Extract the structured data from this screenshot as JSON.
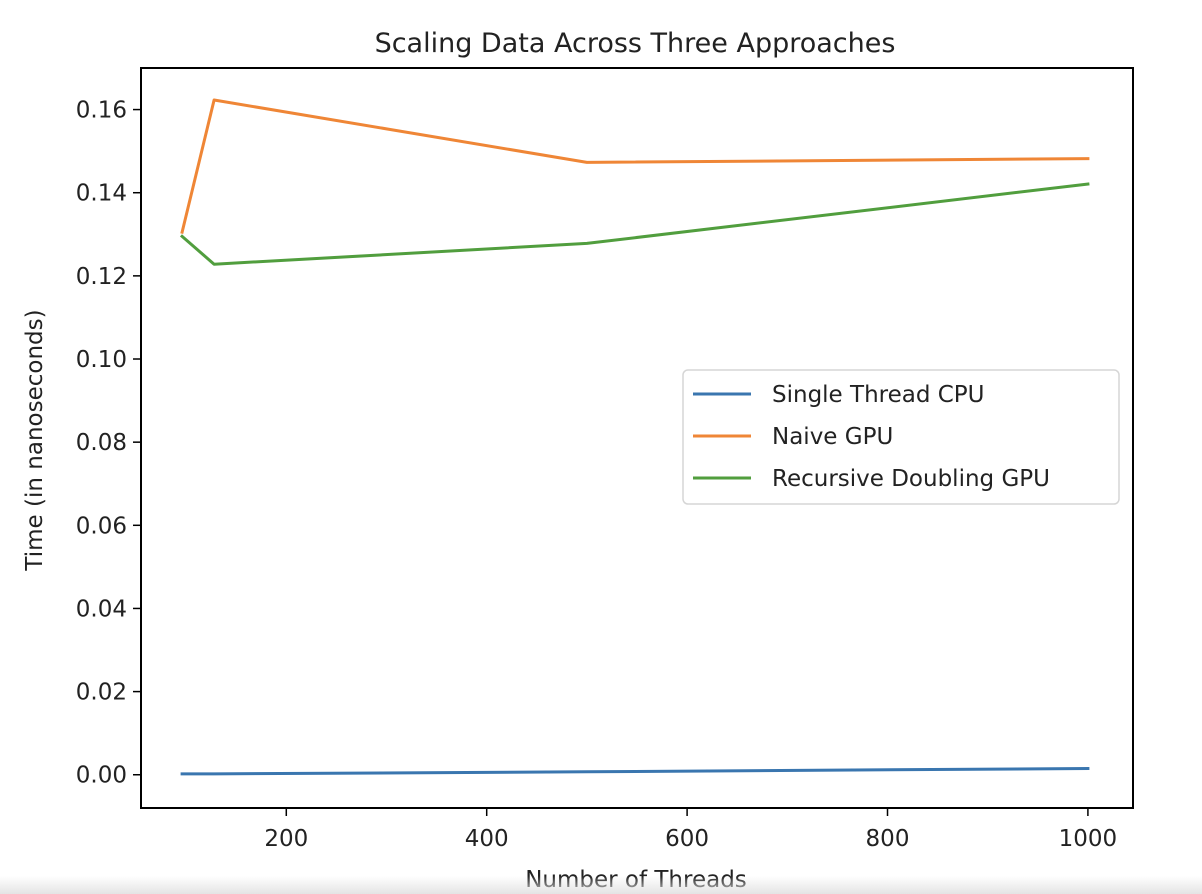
{
  "chart_data": {
    "type": "line",
    "title": "Scaling Data Across Three Approaches",
    "xlabel": "Number of Threads",
    "ylabel": "Time (in nanoseconds)",
    "xlim": [
      55,
      1045
    ],
    "ylim": [
      -0.008,
      0.17
    ],
    "xticks": [
      200,
      400,
      600,
      800,
      1000
    ],
    "xtick_labels": [
      "200",
      "400",
      "600",
      "800",
      "1000"
    ],
    "yticks": [
      0.0,
      0.02,
      0.04,
      0.06,
      0.08,
      0.1,
      0.12,
      0.14,
      0.16
    ],
    "ytick_labels": [
      "0.00",
      "0.02",
      "0.04",
      "0.06",
      "0.08",
      "0.10",
      "0.12",
      "0.14",
      "0.16"
    ],
    "grid": false,
    "legend_position": "center-right",
    "x": [
      96,
      128,
      500,
      1000
    ],
    "series": [
      {
        "name": "Single Thread CPU",
        "color": "#3a76af",
        "values": [
          0.0002,
          0.0002,
          0.0007,
          0.0015
        ]
      },
      {
        "name": "Naive GPU",
        "color": "#ef8636",
        "values": [
          0.1305,
          0.1623,
          0.1473,
          0.1482
        ]
      },
      {
        "name": "Recursive Doubling GPU",
        "color": "#519e3e",
        "values": [
          0.1295,
          0.1228,
          0.1278,
          0.1421
        ]
      }
    ]
  }
}
